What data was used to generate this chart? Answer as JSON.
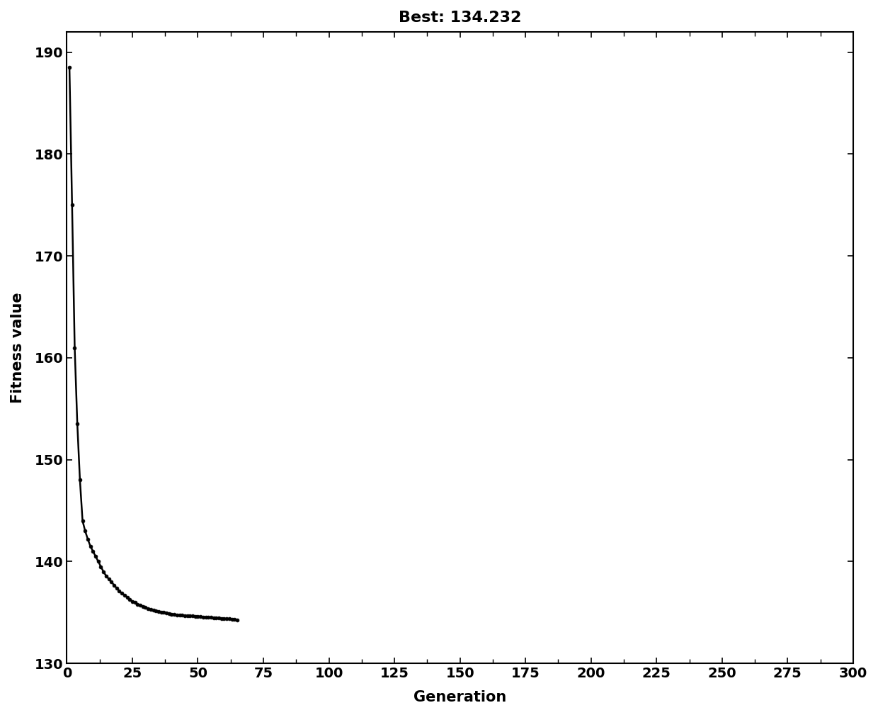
{
  "title": "Best: 134.232",
  "xlabel": "Generation",
  "ylabel": "Fitness value",
  "xlim": [
    0,
    300
  ],
  "ylim": [
    130,
    192
  ],
  "xticks": [
    0,
    25,
    50,
    75,
    100,
    125,
    150,
    175,
    200,
    225,
    250,
    275,
    300
  ],
  "xtick_labels": [
    "0",
    "25",
    "50",
    "75",
    "100",
    "125",
    "150",
    "175",
    "200",
    "225",
    "250",
    "275",
    "300"
  ],
  "yticks": [
    130,
    140,
    150,
    160,
    170,
    180,
    190
  ],
  "line_color": "#000000",
  "marker_color": "#000000",
  "background_color": "#ffffff",
  "title_fontsize": 16,
  "label_fontsize": 15,
  "tick_fontsize": 14,
  "x_data": [
    1,
    2,
    3,
    4,
    5,
    6,
    7,
    8,
    9,
    10,
    11,
    12,
    13,
    14,
    15,
    16,
    17,
    18,
    19,
    20,
    21,
    22,
    23,
    24,
    25,
    26,
    27,
    28,
    29,
    30,
    31,
    32,
    33,
    34,
    35,
    36,
    37,
    38,
    39,
    40,
    41,
    42,
    43,
    44,
    45,
    46,
    47,
    48,
    49,
    50,
    51,
    52,
    53,
    54,
    55,
    56,
    57,
    58,
    59,
    60,
    61,
    62,
    63,
    64,
    65
  ],
  "y_data": [
    188.5,
    175.0,
    161.0,
    153.5,
    148.0,
    144.0,
    143.0,
    142.2,
    141.5,
    141.0,
    140.5,
    140.0,
    139.5,
    139.0,
    138.6,
    138.3,
    138.0,
    137.7,
    137.4,
    137.1,
    136.9,
    136.7,
    136.5,
    136.3,
    136.1,
    136.0,
    135.8,
    135.7,
    135.6,
    135.5,
    135.4,
    135.3,
    135.2,
    135.15,
    135.1,
    135.05,
    135.0,
    134.95,
    134.9,
    134.85,
    134.8,
    134.78,
    134.75,
    134.73,
    134.71,
    134.69,
    134.67,
    134.65,
    134.63,
    134.61,
    134.59,
    134.57,
    134.55,
    134.53,
    134.51,
    134.49,
    134.47,
    134.45,
    134.43,
    134.41,
    134.39,
    134.37,
    134.35,
    134.33,
    134.232
  ]
}
